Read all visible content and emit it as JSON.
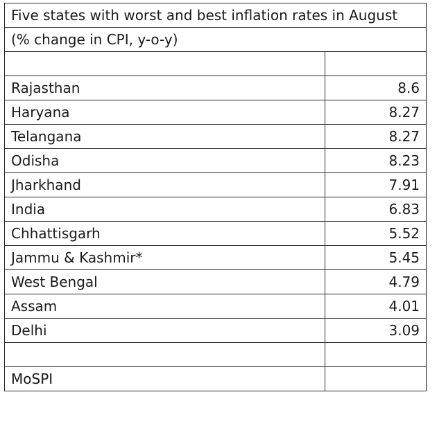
{
  "chart_data": {
    "type": "table",
    "title": "Five states with worst and best inflation rates in August",
    "subtitle": "(% change in CPI, y-o-y)",
    "rows": [
      {
        "state": "Rajasthan",
        "value": "8.6"
      },
      {
        "state": "Haryana",
        "value": "8.27"
      },
      {
        "state": "Telangana",
        "value": "8.27"
      },
      {
        "state": "Odisha",
        "value": "8.23"
      },
      {
        "state": "Jharkhand",
        "value": "7.91"
      },
      {
        "state": "India",
        "value": "6.83"
      },
      {
        "state": "Chhattisgarh",
        "value": "5.52"
      },
      {
        "state": "Jammu & Kashmir*",
        "value": "5.45"
      },
      {
        "state": "West Bengal",
        "value": "4.79"
      },
      {
        "state": "Assam",
        "value": "4.01"
      },
      {
        "state": "Delhi",
        "value": "3.09"
      }
    ],
    "source": "MoSPI"
  }
}
